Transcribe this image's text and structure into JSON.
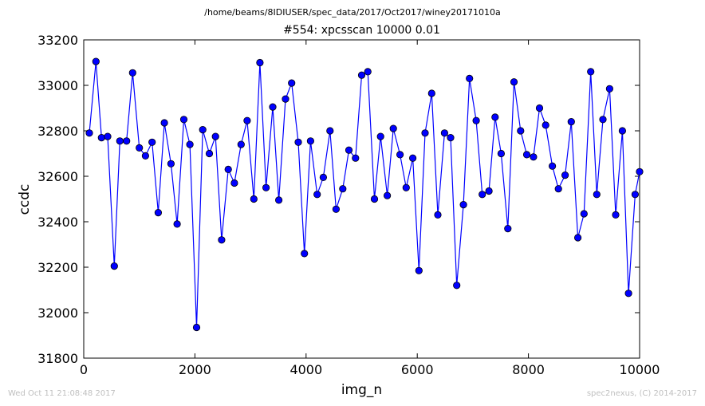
{
  "header": {
    "suptitle": "/home/beams/8IDIUSER/spec_data/2017/Oct2017/winey20171010a"
  },
  "footer": {
    "timestamp": "Wed Oct 11 21:08:48 2017",
    "credit": "spec2nexus, (C) 2014-2017"
  },
  "colors": {
    "line": "#0000ff",
    "marker_fill": "#0000ff",
    "axes": "#000000"
  },
  "chart_data": {
    "type": "line",
    "title": "#554: xpcsscan 10000 0.01",
    "xlabel": "img_n",
    "ylabel": "ccdc",
    "xlim": [
      0,
      10000
    ],
    "ylim": [
      31800,
      33200
    ],
    "xticks": [
      0,
      2000,
      4000,
      6000,
      8000,
      10000
    ],
    "yticks": [
      31800,
      32000,
      32200,
      32400,
      32600,
      32800,
      33000,
      33200
    ],
    "grid": false,
    "marker": "circle",
    "series": [
      {
        "x": [
          100,
          220,
          320,
          430,
          550,
          650,
          770,
          880,
          1000,
          1110,
          1230,
          1340,
          1450,
          1570,
          1680,
          1800,
          1910,
          2030,
          2140,
          2260,
          2370,
          2480,
          2600,
          2710,
          2830,
          2940,
          3060,
          3170,
          3280,
          3400,
          3510,
          3630,
          3740,
          3860,
          3970,
          4080,
          4200,
          4310,
          4430,
          4540,
          4660,
          4770,
          4890,
          5000,
          5110,
          5230,
          5340,
          5460,
          5570,
          5690,
          5800,
          5920,
          6030,
          6140,
          6260,
          6370,
          6490,
          6600,
          6710,
          6830,
          6940,
          7060,
          7170,
          7290,
          7400,
          7510,
          7630,
          7740,
          7860,
          7970,
          8090,
          8200,
          8310,
          8430,
          8540,
          8660,
          8770,
          8890,
          9000,
          9120,
          9230,
          9340,
          9460,
          9570,
          9690,
          9800,
          9920,
          10000
        ],
        "y": [
          32790,
          33105,
          32770,
          32775,
          32205,
          32755,
          32755,
          33055,
          32725,
          32690,
          32750,
          32440,
          32835,
          32655,
          32390,
          32850,
          32740,
          31935,
          32805,
          32700,
          32775,
          32320,
          32630,
          32570,
          32740,
          32845,
          32500,
          33100,
          32550,
          32905,
          32495,
          32940,
          33010,
          32750,
          32260,
          32755,
          32520,
          32595,
          32800,
          32455,
          32545,
          32715,
          32680,
          33045,
          33060,
          32500,
          32775,
          32515,
          32810,
          32695,
          32550,
          32680,
          32185,
          32790,
          32965,
          32430,
          32790,
          32770,
          32120,
          32475,
          33030,
          32845,
          32520,
          32535,
          32860,
          32700,
          32370,
          33015,
          32800,
          32695,
          32685,
          32900,
          32825,
          32645,
          32545,
          32605,
          32840,
          32330,
          32435,
          33060,
          32520,
          32850,
          32985,
          32430,
          32800,
          32085,
          32520,
          32620
        ]
      }
    ]
  }
}
